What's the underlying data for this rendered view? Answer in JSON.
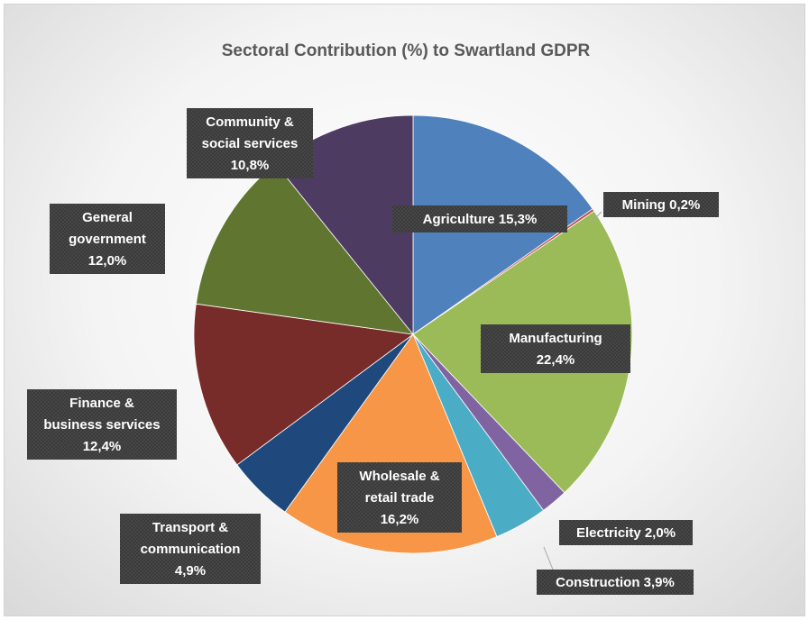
{
  "chart_data": {
    "type": "pie",
    "title": "Sectoral Contribution (%) to Swartland GDPR",
    "slices": [
      {
        "label_lines": [
          "Agriculture 15,3%"
        ],
        "value": 15.3,
        "color": "#4f81bd"
      },
      {
        "label_lines": [
          "Mining  0,2%"
        ],
        "value": 0.2,
        "color": "#c0504d"
      },
      {
        "label_lines": [
          "Manufacturing",
          "22,4%"
        ],
        "value": 22.4,
        "color": "#9bbb59"
      },
      {
        "label_lines": [
          "Electricity 2,0%"
        ],
        "value": 2.0,
        "color": "#8064a2"
      },
      {
        "label_lines": [
          "Construction 3,9%"
        ],
        "value": 3.9,
        "color": "#4bacc6"
      },
      {
        "label_lines": [
          "Wholesale &",
          "retail trade",
          "16,2%"
        ],
        "value": 16.2,
        "color": "#f79646"
      },
      {
        "label_lines": [
          "Transport &",
          "communication",
          "4,9%"
        ],
        "value": 4.9,
        "color": "#1f497d"
      },
      {
        "label_lines": [
          "Finance &",
          "business services",
          "12,4%"
        ],
        "value": 12.4,
        "color": "#772c2a"
      },
      {
        "label_lines": [
          "General",
          "government",
          "12,0%"
        ],
        "value": 12.0,
        "color": "#5f7530"
      },
      {
        "label_lines": [
          "Community &",
          "social services",
          "10,8%"
        ],
        "value": 10.8,
        "color": "#4d3b62"
      }
    ],
    "legend": "none"
  }
}
